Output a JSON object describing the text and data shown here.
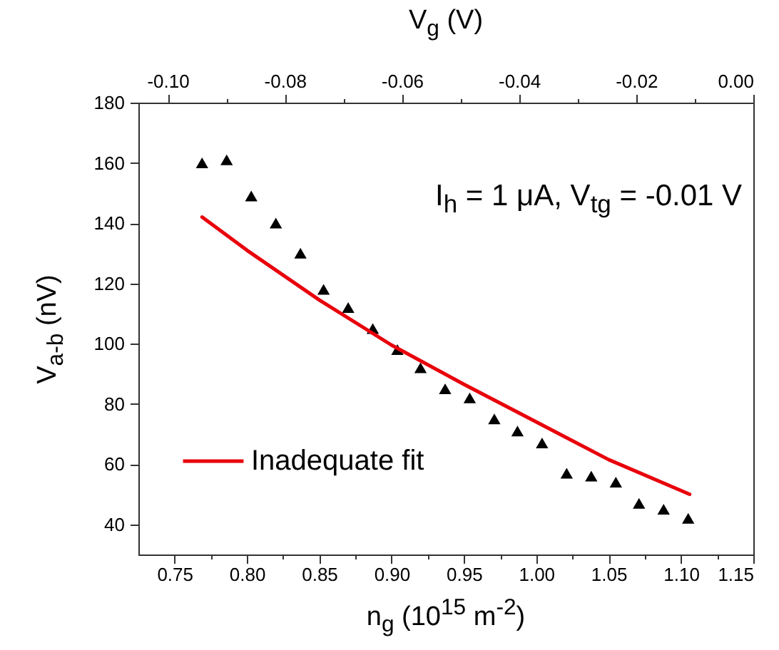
{
  "chart_data": {
    "type": "scatter",
    "xlabel": "n$_{g}$ (10$^{15}$ m$^{-2}$)",
    "ylabel": "V$_{a-b}$ (nV)",
    "x2label": "V$_{g}$ (V)",
    "annotations": [
      "I$_{h}$ = 1 μA, V$_{tg}$ = -0.01 V"
    ],
    "xlim": [
      0.725,
      1.15
    ],
    "xticks": [
      {
        "value": 0.75,
        "label": "0.75"
      },
      {
        "value": 0.775,
        "label": null
      },
      {
        "value": 0.8,
        "label": "0.80"
      },
      {
        "value": 0.825,
        "label": null
      },
      {
        "value": 0.85,
        "label": "0.85"
      },
      {
        "value": 0.875,
        "label": null
      },
      {
        "value": 0.9,
        "label": "0.90"
      },
      {
        "value": 0.925,
        "label": null
      },
      {
        "value": 0.95,
        "label": "0.95"
      },
      {
        "value": 0.975,
        "label": null
      },
      {
        "value": 1.0,
        "label": "1.00"
      },
      {
        "value": 1.025,
        "label": null
      },
      {
        "value": 1.05,
        "label": "1.05"
      },
      {
        "value": 1.075,
        "label": null
      },
      {
        "value": 1.1,
        "label": "1.10"
      },
      {
        "value": 1.125,
        "label": null
      },
      {
        "value": 1.15,
        "label": "1.15"
      }
    ],
    "x2lim": [
      -0.105,
      0.0
    ],
    "x2ticks": [
      {
        "value": -0.1,
        "label": "-0.10"
      },
      {
        "value": -0.09,
        "label": null
      },
      {
        "value": -0.08,
        "label": "-0.08"
      },
      {
        "value": -0.07,
        "label": null
      },
      {
        "value": -0.06,
        "label": "-0.06"
      },
      {
        "value": -0.05,
        "label": null
      },
      {
        "value": -0.04,
        "label": "-0.04"
      },
      {
        "value": -0.03,
        "label": null
      },
      {
        "value": -0.02,
        "label": "-0.02"
      },
      {
        "value": -0.01,
        "label": null
      },
      {
        "value": 0.0,
        "label": "0.00"
      }
    ],
    "ylim": [
      30,
      180
    ],
    "yticks": [
      40,
      60,
      80,
      100,
      120,
      140,
      160,
      180
    ],
    "legend": "bottom left",
    "series": [
      {
        "marker": "triangle",
        "color": "#000000",
        "x": [
          0.769,
          0.786,
          0.803,
          0.82,
          0.837,
          0.853,
          0.87,
          0.887,
          0.904,
          0.92,
          0.937,
          0.954,
          0.971,
          0.987,
          1.004,
          1.021,
          1.038,
          1.055,
          1.071,
          1.088,
          1.105
        ],
        "values": [
          160,
          161,
          149,
          140,
          130,
          118,
          112,
          105,
          98,
          92,
          85,
          82,
          75,
          71,
          67,
          57,
          56,
          54,
          47,
          45,
          42
        ]
      },
      {
        "type": "line",
        "name": "Inadequate fit",
        "color": "#e8000b",
        "x": [
          0.769,
          0.8,
          0.85,
          0.9,
          0.95,
          1.0,
          1.05,
          1.106
        ],
        "values": [
          142,
          131,
          114.5,
          99.5,
          86.5,
          74,
          61.5,
          50
        ]
      }
    ]
  }
}
